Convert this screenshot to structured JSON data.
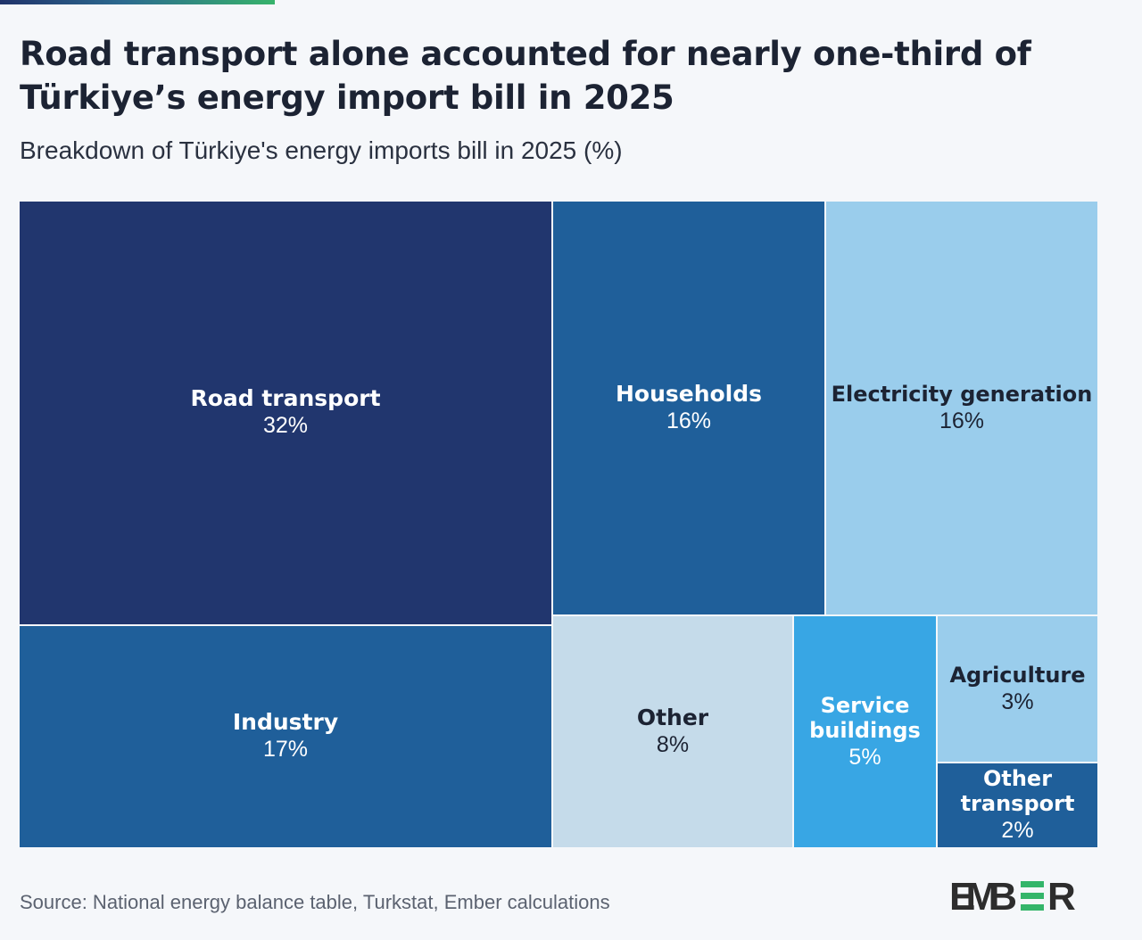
{
  "header": {
    "title": "Road transport alone accounted for nearly one-third of Türkiye’s energy import bill in 2025",
    "subtitle": "Breakdown of Türkiye's energy imports bill in 2025 (%)"
  },
  "chart_data": {
    "type": "treemap",
    "unit": "%",
    "items": [
      {
        "name": "Road transport",
        "value": 32,
        "label": "32%",
        "color": "#21366e",
        "text_color": "#ffffff"
      },
      {
        "name": "Industry",
        "value": 17,
        "label": "17%",
        "color": "#1f5f9a",
        "text_color": "#ffffff"
      },
      {
        "name": "Households",
        "value": 16,
        "label": "16%",
        "color": "#1f5f9a",
        "text_color": "#ffffff"
      },
      {
        "name": "Electricity generation",
        "value": 16,
        "label": "16%",
        "color": "#9acdec",
        "text_color": "#1c2333"
      },
      {
        "name": "Other",
        "value": 8,
        "label": "8%",
        "color": "#c5dbea",
        "text_color": "#1c2333"
      },
      {
        "name": "Service buildings",
        "value": 5,
        "label": "5%",
        "color": "#38a6e4",
        "text_color": "#ffffff"
      },
      {
        "name": "Agriculture",
        "value": 3,
        "label": "3%",
        "color": "#9acdec",
        "text_color": "#1c2333"
      },
      {
        "name": "Other transport",
        "value": 2,
        "label": "2%",
        "color": "#1f5f9a",
        "text_color": "#ffffff"
      }
    ]
  },
  "footer": {
    "source": "Source: National energy balance table, Turkstat, Ember calculations",
    "logo_text": "EMBER",
    "logo_color": "#2d2d2d",
    "logo_accent": "#34b56a"
  }
}
